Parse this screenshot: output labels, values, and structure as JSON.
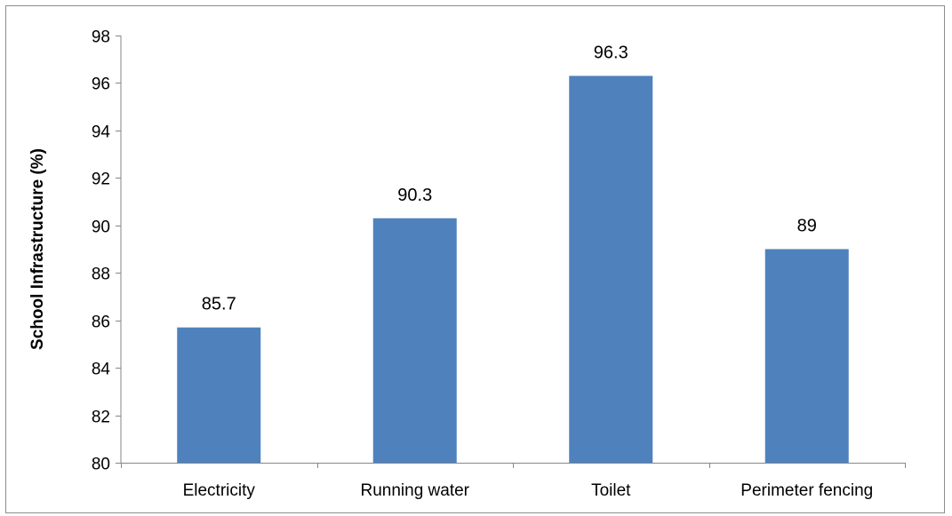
{
  "chart_data": {
    "type": "bar",
    "title": "",
    "xlabel": "",
    "ylabel": "School Infrastructure (%)",
    "categories": [
      "Electricity",
      "Running water",
      "Toilet",
      "Perimeter fencing"
    ],
    "values": [
      85.7,
      90.3,
      96.3,
      89
    ],
    "value_labels": [
      "85.7",
      "90.3",
      "96.3",
      "89"
    ],
    "ylim": [
      80,
      98
    ],
    "yticks": [
      80,
      82,
      84,
      86,
      88,
      90,
      92,
      94,
      96,
      98
    ],
    "grid": false,
    "legend": "none",
    "bar_color": "#4f81bd"
  }
}
